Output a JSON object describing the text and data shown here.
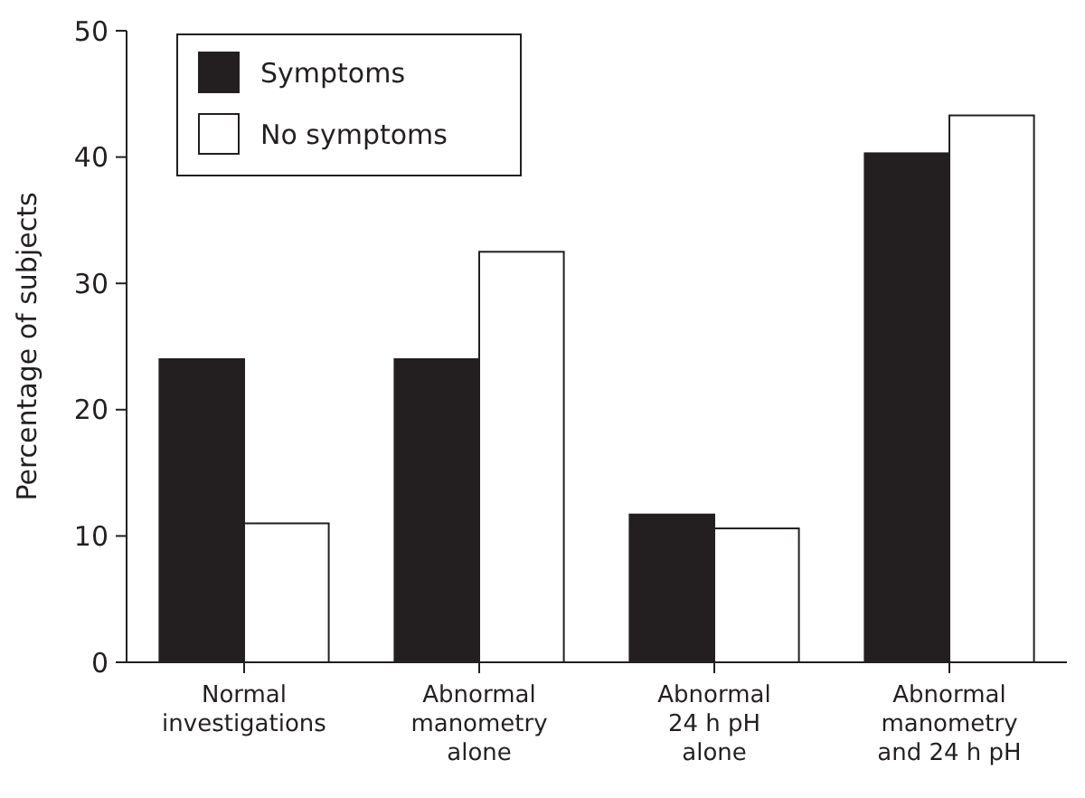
{
  "chart_data": {
    "type": "bar",
    "ylabel": "Percentage of subjects",
    "categories": [
      "Normal\ninvestigations",
      "Abnormal\nmanometry\nalone",
      "Abnormal\n24 h pH\nalone",
      "Abnormal\nmanometry\nand 24 h pH"
    ],
    "series": [
      {
        "name": "Symptoms",
        "color": "#231f20",
        "values": [
          24,
          24,
          11.7,
          40.3
        ]
      },
      {
        "name": "No symptoms",
        "color": "#ffffff",
        "values": [
          11,
          32.5,
          10.6,
          43.3
        ]
      }
    ],
    "ylim": [
      0,
      50
    ],
    "yticks": [
      0,
      10,
      20,
      30,
      40,
      50
    ],
    "legend": "top left",
    "grid": false
  }
}
